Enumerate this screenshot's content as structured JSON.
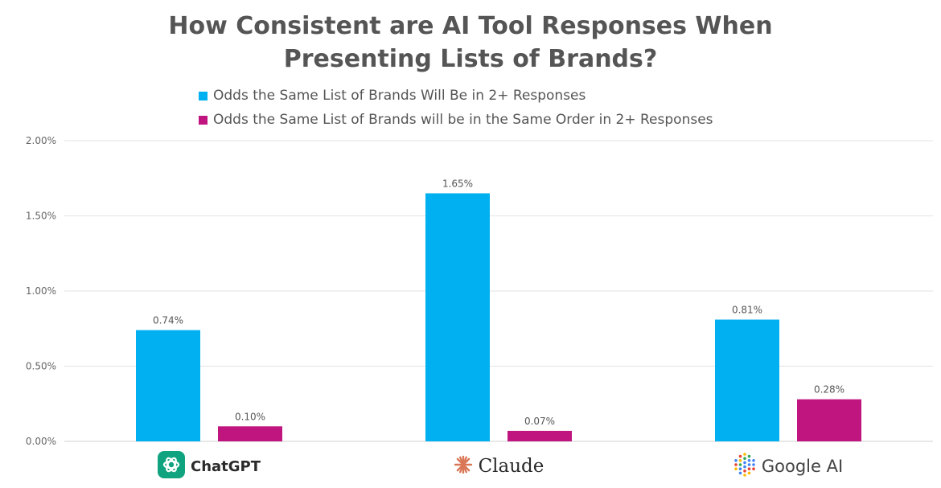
{
  "chart_data": {
    "type": "bar",
    "title_lines": [
      "How Consistent are AI Tool Responses When",
      "Presenting Lists of Brands?"
    ],
    "categories": [
      "ChatGPT",
      "Claude",
      "Google AI"
    ],
    "series": [
      {
        "name": "Odds the Same List of Brands Will Be in 2+ Responses",
        "values": [
          0.74,
          1.65,
          0.81
        ],
        "labels": [
          "0.74%",
          "1.65%",
          "0.81%"
        ],
        "color": "#00b0f0"
      },
      {
        "name": "Odds the Same List of Brands will be in the Same Order in 2+ Responses",
        "values": [
          0.1,
          0.07,
          0.28
        ],
        "labels": [
          "0.10%",
          "0.07%",
          "0.28%"
        ],
        "color": "#c0157e"
      }
    ],
    "ylim": [
      0,
      2
    ],
    "yticks": [
      0,
      0.5,
      1.0,
      1.5,
      2.0
    ],
    "ytick_labels": [
      "0.00%",
      "0.50%",
      "1.00%",
      "1.50%",
      "2.00%"
    ],
    "grid": true,
    "legend_position": "top-center"
  },
  "logos": {
    "chatgpt": "chatgpt-logo-icon",
    "claude": "claude-sunburst-icon",
    "google": "google-ai-dots-icon"
  }
}
